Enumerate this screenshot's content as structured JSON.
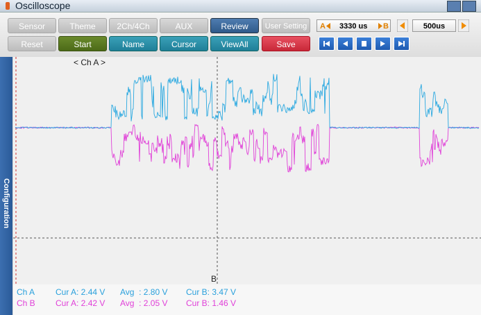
{
  "window": {
    "title": "Oscilloscope"
  },
  "toolbar": {
    "row1": [
      "Sensor",
      "Theme",
      "2Ch/4Ch",
      "AUX",
      "Review",
      "User Setting"
    ],
    "row2": [
      "Reset",
      "Start",
      "Name",
      "Cursor",
      "ViewAll",
      "Save"
    ]
  },
  "time_controls": {
    "cursor_a_label": "A",
    "cursor_b_label": "B",
    "cursor_time": "3330 us",
    "timebase": "500us"
  },
  "side_panel": {
    "label": "Configuration"
  },
  "plot": {
    "channel_label": "< Ch A >",
    "cursor_marker": "B"
  },
  "readouts": [
    {
      "channel": "Ch A",
      "cur_a": "Cur A: 2.44 V",
      "avg": "Avg  : 2.80 V",
      "cur_b": "Cur B: 3.47 V"
    },
    {
      "channel": "Ch B",
      "cur_a": "Cur A: 2.42 V",
      "avg": "Avg  : 2.05 V",
      "cur_b": "Cur B: 1.46 V"
    }
  ]
}
